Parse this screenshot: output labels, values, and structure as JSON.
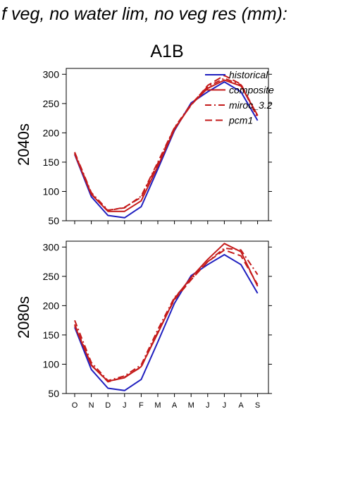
{
  "page": {
    "title": "f veg, no water lim, no veg res (mm):",
    "scenario": "A1B"
  },
  "colors": {
    "historical": "#1f1fbf",
    "scenario": "#c41a1a",
    "axis": "#000000"
  },
  "legend": {
    "items": [
      {
        "label": "historical",
        "color": "#1f1fbf",
        "dash": "solid"
      },
      {
        "label": "composite",
        "color": "#c41a1a",
        "dash": "solid"
      },
      {
        "label": "miroc_3.2",
        "color": "#c41a1a",
        "dash": "dashdot"
      },
      {
        "label": "pcm1",
        "color": "#c41a1a",
        "dash": "dash"
      }
    ]
  },
  "chart_data": [
    {
      "type": "line",
      "title": "2040s",
      "xlabel": "",
      "ylabel": "2040s",
      "categories": [
        "O",
        "N",
        "D",
        "J",
        "F",
        "M",
        "A",
        "M",
        "J",
        "J",
        "A",
        "S"
      ],
      "ylim": [
        50,
        310
      ],
      "yticks": [
        50,
        100,
        150,
        200,
        250,
        300
      ],
      "grid": false,
      "legend_position": "top-right",
      "series": [
        {
          "name": "historical",
          "style": "solid",
          "values": [
            163,
            91,
            59,
            55,
            74,
            138,
            204,
            251,
            270,
            287,
            270,
            221
          ]
        },
        {
          "name": "composite",
          "style": "solid",
          "values": [
            164,
            95,
            66,
            66,
            84,
            143,
            206,
            248,
            276,
            290,
            280,
            230
          ]
        },
        {
          "name": "miroc_3.2",
          "style": "dashdot",
          "values": [
            167,
            98,
            68,
            72,
            92,
            150,
            209,
            249,
            279,
            293,
            282,
            226
          ]
        },
        {
          "name": "pcm1",
          "style": "dash",
          "values": [
            166,
            96,
            67,
            73,
            90,
            148,
            208,
            247,
            281,
            298,
            283,
            229
          ]
        }
      ]
    },
    {
      "type": "line",
      "title": "2080s",
      "xlabel": "",
      "ylabel": "2080s",
      "categories": [
        "O",
        "N",
        "D",
        "J",
        "F",
        "M",
        "A",
        "M",
        "J",
        "J",
        "A",
        "S"
      ],
      "ylim": [
        50,
        310
      ],
      "yticks": [
        50,
        100,
        150,
        200,
        250,
        300
      ],
      "grid": false,
      "series": [
        {
          "name": "historical",
          "style": "solid",
          "values": [
            163,
            91,
            59,
            55,
            74,
            138,
            204,
            251,
            270,
            287,
            270,
            221
          ]
        },
        {
          "name": "composite",
          "style": "solid",
          "values": [
            166,
            98,
            71,
            77,
            96,
            153,
            212,
            248,
            279,
            306,
            292,
            233
          ]
        },
        {
          "name": "miroc_3.2",
          "style": "dashdot",
          "values": [
            175,
            103,
            72,
            80,
            99,
            159,
            214,
            245,
            275,
            298,
            295,
            253
          ]
        },
        {
          "name": "pcm1",
          "style": "dash",
          "values": [
            168,
            99,
            70,
            78,
            95,
            155,
            210,
            244,
            275,
            295,
            285,
            236
          ]
        }
      ]
    }
  ]
}
